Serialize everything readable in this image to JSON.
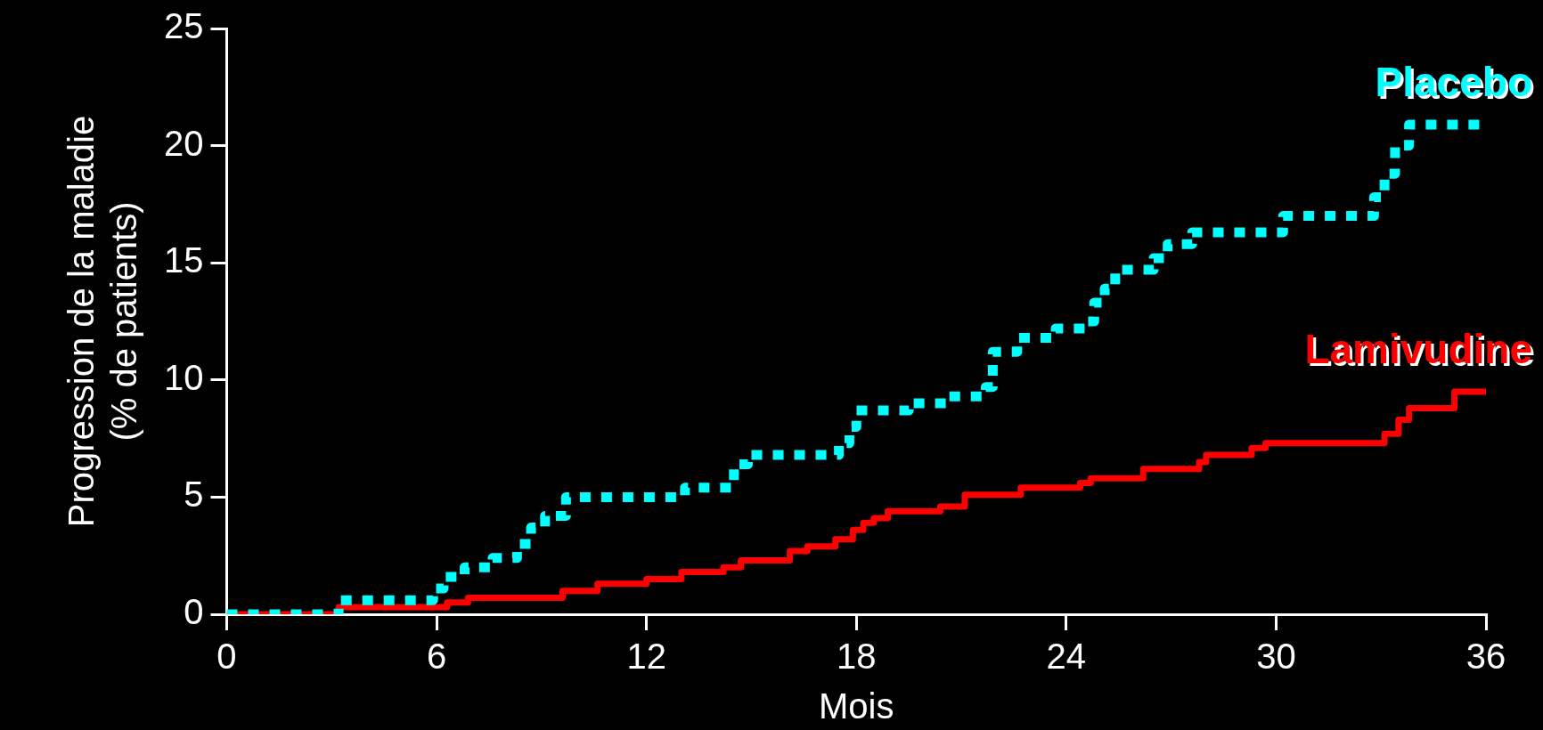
{
  "chart_data": {
    "type": "step",
    "xlabel": "Mois",
    "ylabel": "Progression de la maladie\n(% de patients)",
    "xlim": [
      0,
      36
    ],
    "xticks": [
      0,
      6,
      12,
      18,
      24,
      30,
      36
    ],
    "ylim": [
      0,
      25
    ],
    "yticks": [
      0,
      5,
      10,
      15,
      20,
      25
    ],
    "grid": false,
    "legend": false,
    "series": [
      {
        "name": "Placebo",
        "color": "#00ffff",
        "line_style": "dotted",
        "x": [
          0,
          3.2,
          5.9,
          6.2,
          6.8,
          7.6,
          8.3,
          8.7,
          9.1,
          9.7,
          13.1,
          14.5,
          14.9,
          17.5,
          17.8,
          18.0,
          19.5,
          20.6,
          21.7,
          21.9,
          22.6,
          23.7,
          24.6,
          24.8,
          25.1,
          25.4,
          26.5,
          26.9,
          27.6,
          30.2,
          32.8,
          33.1,
          33.4,
          33.8,
          36
        ],
        "values": [
          0,
          0.6,
          1.1,
          1.6,
          2.0,
          2.4,
          3.0,
          3.7,
          4.2,
          5.0,
          5.4,
          6.4,
          6.8,
          7.3,
          8.0,
          8.7,
          9.0,
          9.3,
          9.7,
          11.2,
          11.8,
          12.2,
          12.5,
          13.3,
          13.9,
          14.7,
          15.2,
          15.8,
          16.3,
          17.0,
          17.8,
          18.8,
          20.0,
          20.9,
          20.9
        ]
      },
      {
        "name": "Lamivudine",
        "color": "#ff0000",
        "line_style": "solid",
        "x": [
          0,
          3.2,
          6.3,
          6.9,
          9.6,
          10.6,
          12.0,
          13.0,
          14.2,
          14.7,
          16.1,
          16.6,
          17.4,
          17.9,
          18.2,
          18.5,
          18.9,
          20.4,
          21.1,
          22.7,
          24.4,
          24.7,
          26.2,
          27.8,
          28.0,
          29.3,
          29.7,
          33.1,
          33.5,
          33.8,
          35.1,
          36
        ],
        "values": [
          0,
          0.3,
          0.5,
          0.7,
          1.0,
          1.3,
          1.5,
          1.8,
          2.0,
          2.3,
          2.7,
          2.9,
          3.2,
          3.6,
          3.9,
          4.1,
          4.4,
          4.6,
          5.1,
          5.4,
          5.6,
          5.8,
          6.2,
          6.5,
          6.8,
          7.1,
          7.3,
          7.7,
          8.3,
          8.8,
          9.5,
          9.5
        ]
      }
    ]
  }
}
